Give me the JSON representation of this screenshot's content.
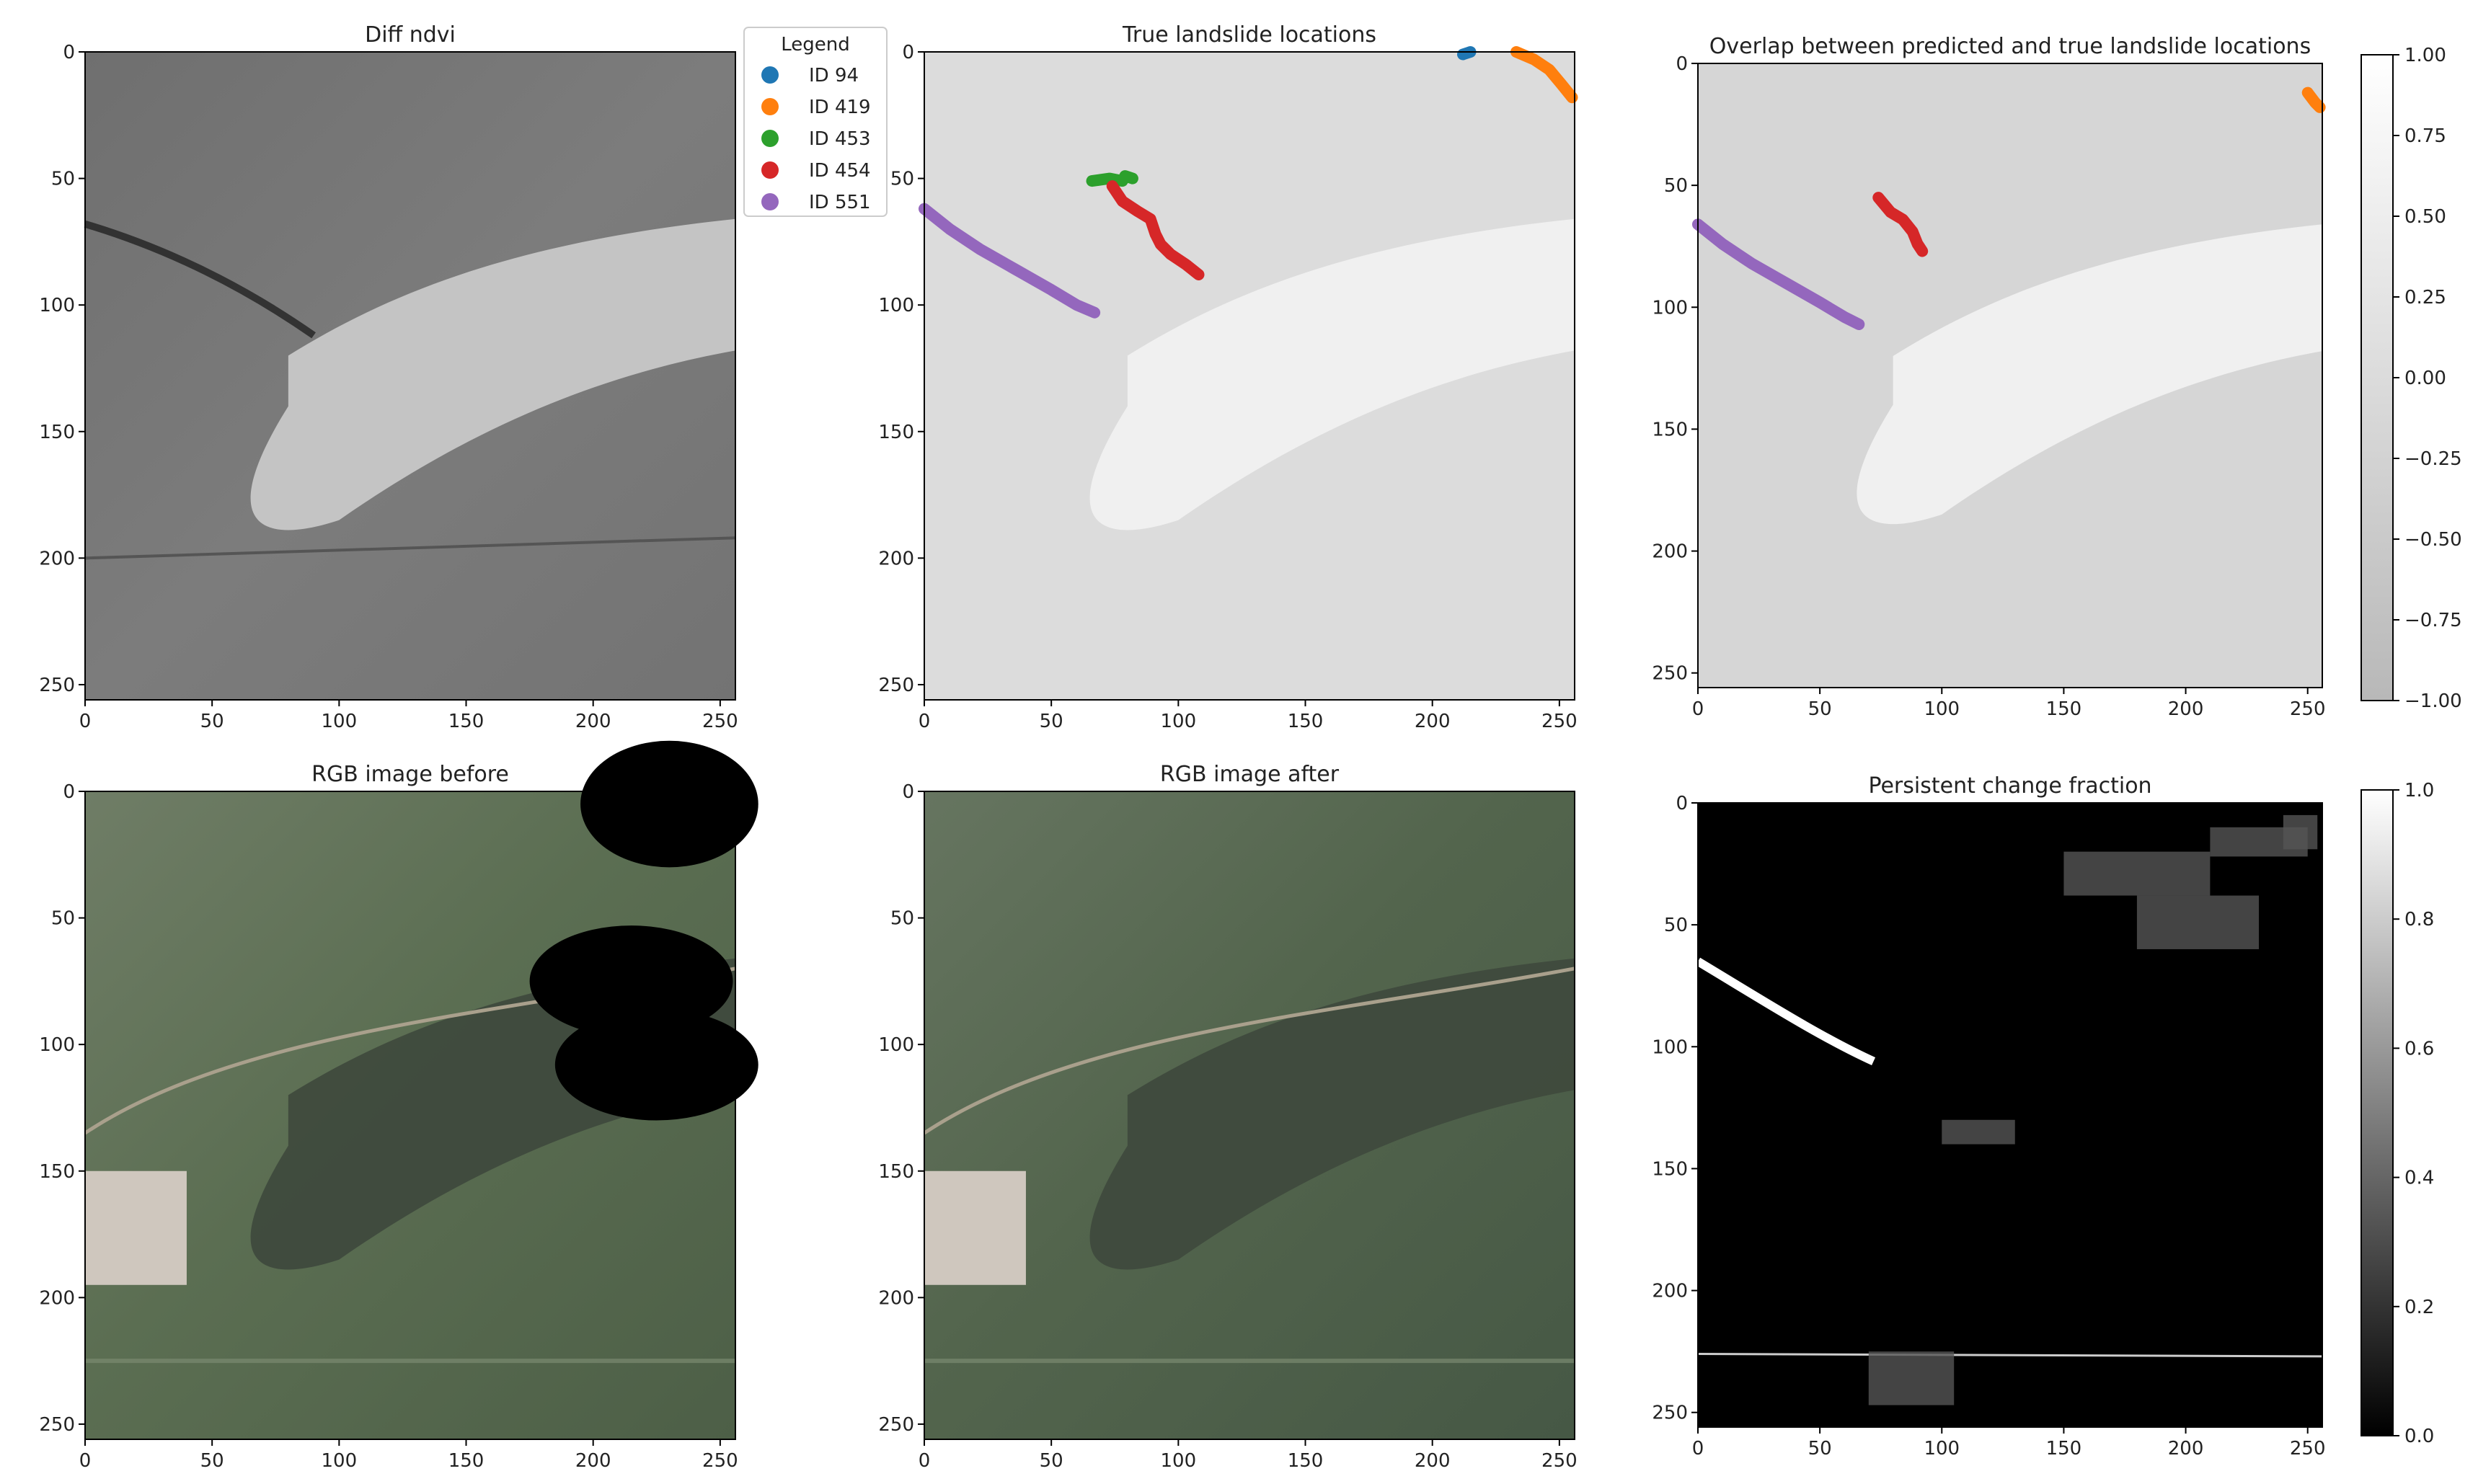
{
  "chart_data": [
    {
      "type": "heatmap",
      "title": "Diff ndvi",
      "xlim": [
        0,
        256
      ],
      "ylim": [
        256,
        0
      ],
      "xticks": [
        "0",
        "50",
        "100",
        "150",
        "200",
        "250"
      ],
      "yticks": [
        "0",
        "50",
        "100",
        "150",
        "200",
        "250"
      ],
      "colormap": "gray",
      "legend": {
        "title": "Legend",
        "placement": "right",
        "entries": [
          {
            "label": "ID 94",
            "color": "#1f77b4"
          },
          {
            "label": "ID 419",
            "color": "#ff7f0e"
          },
          {
            "label": "ID 453",
            "color": "#2ca02c"
          },
          {
            "label": "ID 454",
            "color": "#d62728"
          },
          {
            "label": "ID 551",
            "color": "#9467bd"
          }
        ]
      }
    },
    {
      "type": "heatmap",
      "title": "True landslide locations",
      "xlim": [
        0,
        256
      ],
      "ylim": [
        256,
        0
      ],
      "xticks": [
        "0",
        "50",
        "100",
        "150",
        "200",
        "250"
      ],
      "yticks": [
        "0",
        "50",
        "100",
        "150",
        "200",
        "250"
      ],
      "landslides": [
        {
          "id": "ID 94",
          "color": "#1f77b4",
          "points": [
            [
              212,
              1
            ],
            [
              215,
              0
            ]
          ]
        },
        {
          "id": "ID 419",
          "color": "#ff7f0e",
          "points": [
            [
              233,
              0
            ],
            [
              240,
              3
            ],
            [
              246,
              7
            ],
            [
              251,
              13
            ],
            [
              255,
              18
            ]
          ]
        },
        {
          "id": "ID 453",
          "color": "#2ca02c",
          "points": [
            [
              66,
              51
            ],
            [
              73,
              50
            ],
            [
              78,
              51
            ],
            [
              79,
              49
            ],
            [
              82,
              50
            ]
          ]
        },
        {
          "id": "ID 454",
          "color": "#d62728",
          "points": [
            [
              74,
              53
            ],
            [
              78,
              59
            ],
            [
              84,
              63
            ],
            [
              89,
              66
            ],
            [
              91,
              72
            ],
            [
              93,
              76
            ],
            [
              97,
              80
            ],
            [
              103,
              84
            ],
            [
              108,
              88
            ]
          ]
        },
        {
          "id": "ID 551",
          "color": "#9467bd",
          "points": [
            [
              0,
              62
            ],
            [
              10,
              70
            ],
            [
              22,
              78
            ],
            [
              36,
              86
            ],
            [
              50,
              94
            ],
            [
              60,
              100
            ],
            [
              67,
              103
            ]
          ]
        }
      ]
    },
    {
      "type": "heatmap",
      "title": "Overlap between predicted and true landslide locations",
      "xlim": [
        0,
        256
      ],
      "ylim": [
        256,
        0
      ],
      "xticks": [
        "0",
        "50",
        "100",
        "150",
        "200",
        "250"
      ],
      "yticks": [
        "0",
        "50",
        "100",
        "150",
        "200",
        "250"
      ],
      "colorbar": {
        "range": [
          -1.0,
          1.0
        ],
        "ticks": [
          "1.00",
          "0.75",
          "0.50",
          "0.25",
          "0.00",
          "−0.25",
          "−0.50",
          "−0.75",
          "−1.00"
        ]
      },
      "landslides": [
        {
          "id": "ID 419",
          "color": "#ff7f0e",
          "points": [
            [
              250,
              12
            ],
            [
              253,
              16
            ],
            [
              255,
              18
            ]
          ]
        },
        {
          "id": "ID 454",
          "color": "#d62728",
          "points": [
            [
              74,
              55
            ],
            [
              79,
              61
            ],
            [
              84,
              64
            ],
            [
              88,
              69
            ],
            [
              90,
              74
            ],
            [
              92,
              77
            ]
          ]
        },
        {
          "id": "ID 551",
          "color": "#9467bd",
          "points": [
            [
              0,
              66
            ],
            [
              10,
              74
            ],
            [
              22,
              82
            ],
            [
              36,
              90
            ],
            [
              50,
              98
            ],
            [
              60,
              104
            ],
            [
              66,
              107
            ]
          ]
        }
      ]
    },
    {
      "type": "heatmap",
      "title": "RGB image before",
      "xlim": [
        0,
        256
      ],
      "ylim": [
        256,
        0
      ],
      "xticks": [
        "0",
        "50",
        "100",
        "150",
        "200",
        "250"
      ],
      "yticks": [
        "0",
        "50",
        "100",
        "150",
        "200",
        "250"
      ]
    },
    {
      "type": "heatmap",
      "title": "RGB image after",
      "xlim": [
        0,
        256
      ],
      "ylim": [
        256,
        0
      ],
      "xticks": [
        "0",
        "50",
        "100",
        "150",
        "200",
        "250"
      ],
      "yticks": [
        "0",
        "50",
        "100",
        "150",
        "200",
        "250"
      ]
    },
    {
      "type": "heatmap",
      "title": "Persistent change fraction",
      "xlim": [
        0,
        256
      ],
      "ylim": [
        256,
        0
      ],
      "xticks": [
        "0",
        "50",
        "100",
        "150",
        "200",
        "250"
      ],
      "yticks": [
        "0",
        "50",
        "100",
        "150",
        "200",
        "250"
      ],
      "colorbar": {
        "range": [
          0.0,
          1.0
        ],
        "ticks": [
          "1.0",
          "0.8",
          "0.6",
          "0.4",
          "0.2",
          "0.0"
        ]
      }
    }
  ]
}
